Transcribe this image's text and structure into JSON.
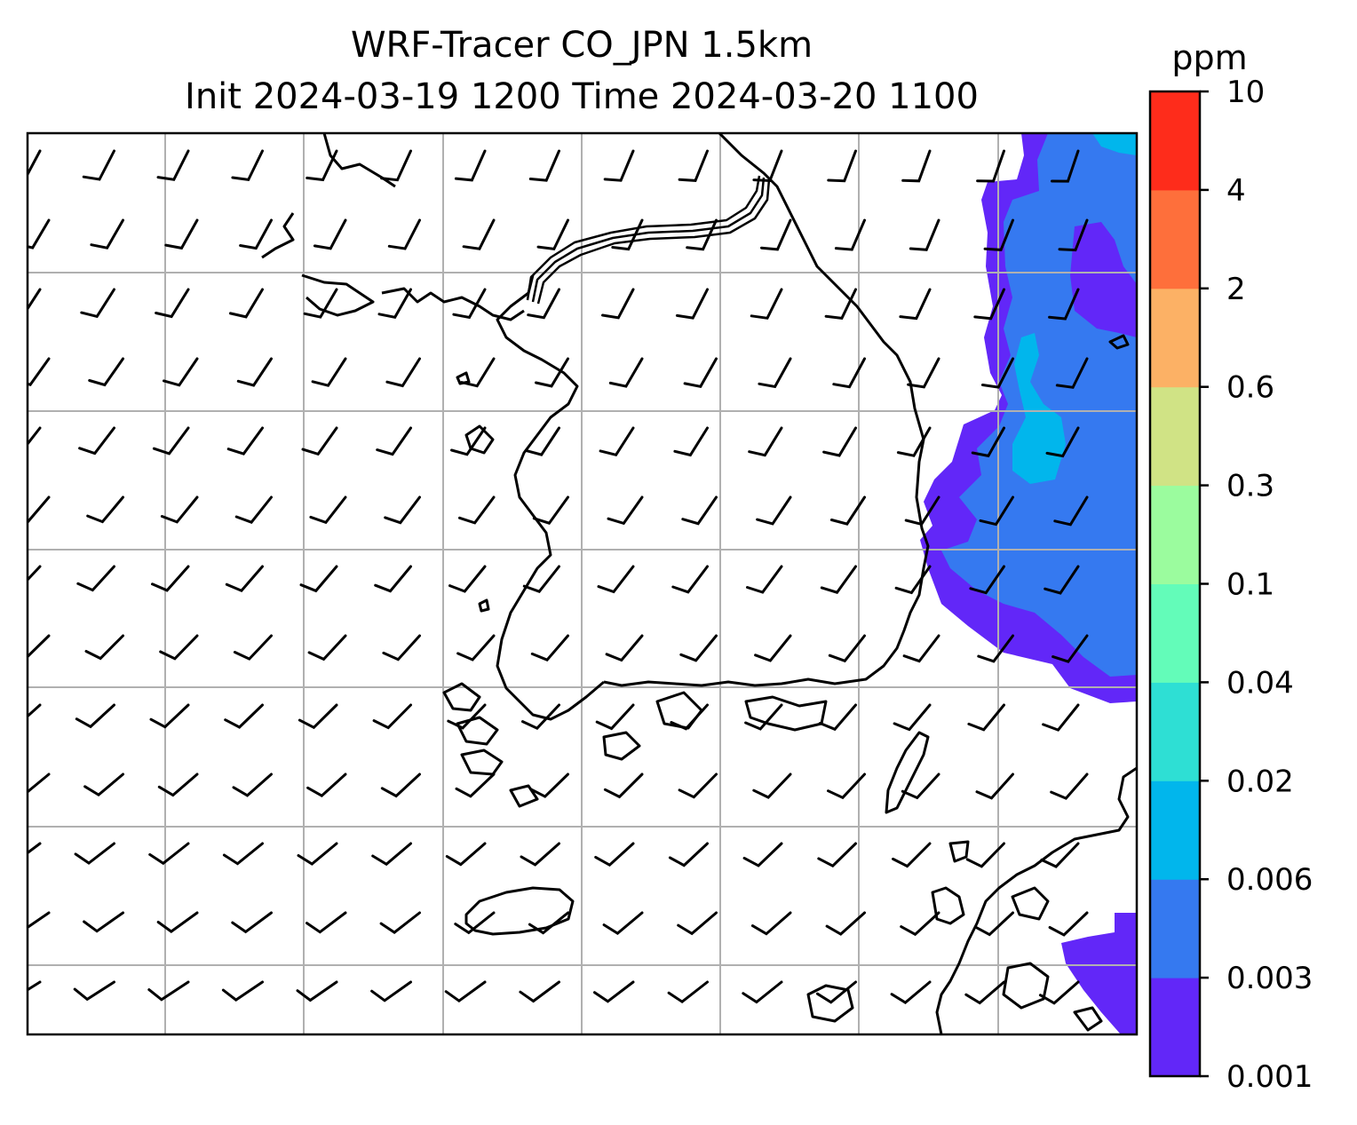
{
  "figure": {
    "title_line1": "WRF-Tracer CO_JPN 1.5km",
    "title_line2": "Init 2024-03-19 1200 Time 2024-03-20 1100"
  },
  "colorbar": {
    "unit": "ppm",
    "levels": [
      "0.001",
      "0.003",
      "0.006",
      "0.02",
      "0.04",
      "0.1",
      "0.3",
      "0.6",
      "2",
      "4",
      "10"
    ],
    "colors": [
      "#6227f8",
      "#3579f0",
      "#01b6ec",
      "#2edfd4",
      "#63fcb9",
      "#9bfc9e",
      "#d0e385",
      "#fcb165",
      "#fe6f3b",
      "#fe2c1b"
    ]
  },
  "map": {
    "gridlines": true,
    "wind_barbs": true,
    "coastline_color": "#000000",
    "gridline_color": "#b0b0b0"
  }
}
